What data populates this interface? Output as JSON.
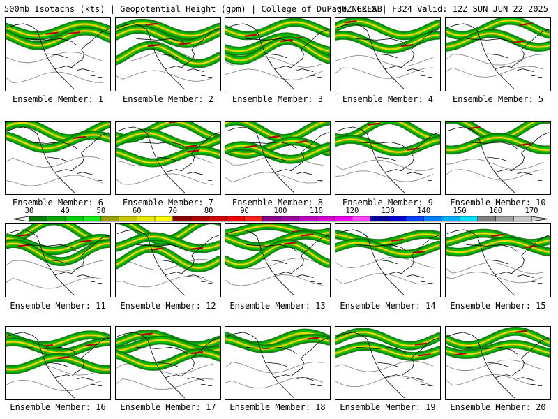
{
  "header": {
    "left": "500mb Isotachs (kts) | Geopotential Height (gpm) | College of DuPage NEXLAB",
    "right": "00Z GEFS | F324 Valid: 12Z SUN JUN 22 2025"
  },
  "colorbar": {
    "ticks": [
      "30",
      "40",
      "50",
      "60",
      "70",
      "80",
      "90",
      "100",
      "110",
      "120",
      "130",
      "140",
      "150",
      "160",
      "170"
    ],
    "colors": [
      "#007a00",
      "#00a800",
      "#00d400",
      "#12f012",
      "#9aa000",
      "#c8c800",
      "#e8e800",
      "#ffff00",
      "#8c0000",
      "#b00000",
      "#d00000",
      "#f00000",
      "#ff2020",
      "#8c008c",
      "#a000a0",
      "#c000c0",
      "#d800d8",
      "#f000f0",
      "#ff40ff",
      "#0000a0",
      "#0000d0",
      "#0040ff",
      "#0080ff",
      "#00b0ff",
      "#00e0ff",
      "#808080",
      "#a0a0a0",
      "#c8c8c8"
    ]
  },
  "members": [
    {
      "label": "Ensemble Member: 1"
    },
    {
      "label": "Ensemble Member: 2"
    },
    {
      "label": "Ensemble Member: 3"
    },
    {
      "label": "Ensemble Member: 4"
    },
    {
      "label": "Ensemble Member: 5"
    },
    {
      "label": "Ensemble Member: 6"
    },
    {
      "label": "Ensemble Member: 7"
    },
    {
      "label": "Ensemble Member: 8"
    },
    {
      "label": "Ensemble Member: 9"
    },
    {
      "label": "Ensemble Member: 10"
    },
    {
      "label": "Ensemble Member: 11"
    },
    {
      "label": "Ensemble Member: 12"
    },
    {
      "label": "Ensemble Member: 13"
    },
    {
      "label": "Ensemble Member: 14"
    },
    {
      "label": "Ensemble Member: 15"
    },
    {
      "label": "Ensemble Member: 16"
    },
    {
      "label": "Ensemble Member: 17"
    },
    {
      "label": "Ensemble Member: 18"
    },
    {
      "label": "Ensemble Member: 19"
    },
    {
      "label": "Ensemble Member: 20"
    }
  ]
}
